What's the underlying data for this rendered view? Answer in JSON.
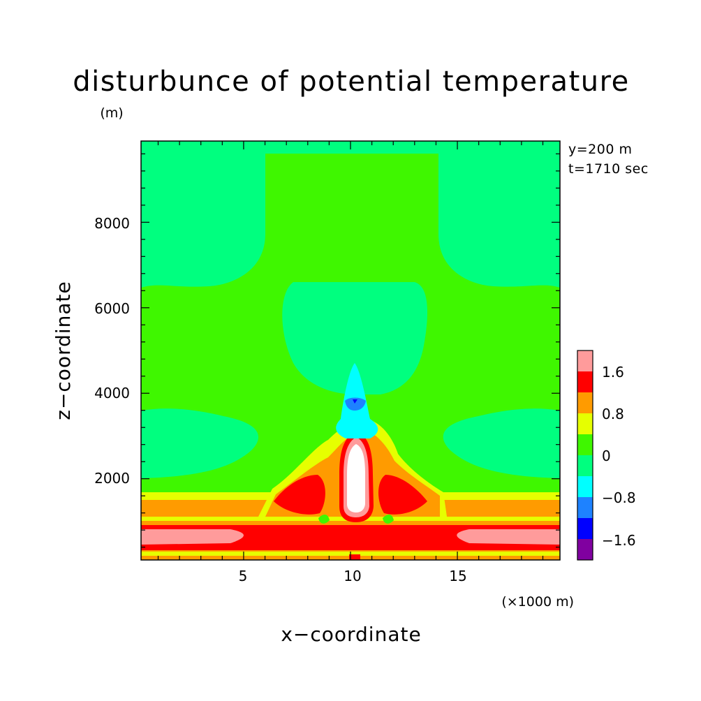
{
  "chart_data": {
    "type": "heatmap",
    "title": "disturbunce of potential temperature",
    "xlabel": "x−coordinate",
    "ylabel": "z−coordinate",
    "x_unit": "(×1000 m)",
    "y_unit": "(m)",
    "annotations": [
      "y=200 m",
      "t=1710 sec"
    ],
    "xlim": [
      0.2,
      19.8
    ],
    "ylim": [
      100,
      9900
    ],
    "x_ticks": [
      5,
      10,
      15
    ],
    "y_ticks": [
      2000,
      4000,
      6000,
      8000
    ],
    "grid": false,
    "colorbar": {
      "placement": "right",
      "levels": [
        -2.0,
        -1.6,
        -1.2,
        -0.8,
        -0.4,
        0,
        0.4,
        0.8,
        1.2,
        1.6,
        2.0
      ],
      "tick_labels": [
        "1.6",
        "0.8",
        "0",
        "−0.8",
        "−1.6"
      ],
      "colors": [
        "#8000a0",
        "#0000ff",
        "#1e82ff",
        "#00ffff",
        "#00ff7f",
        "#3ff700",
        "#e6ff00",
        "#ff9b00",
        "#ff0000",
        "#ff9b9b"
      ]
    },
    "field_features": [
      {
        "feature": "warm core (white, above 2.0)",
        "x": [
          9.6,
          10.4
        ],
        "z": [
          700,
          2800
        ]
      },
      {
        "feature": "cold anomaly (blue)",
        "x": [
          9.8,
          10.2
        ],
        "z": [
          3600,
          4000
        ]
      },
      {
        "feature": "negative plume (cyan)",
        "x": [
          9.4,
          11.0
        ],
        "z": [
          3000,
          4700
        ]
      },
      {
        "feature": "warm bands near surface",
        "x": [
          0.2,
          19.8
        ],
        "z": [
          100,
          1600
        ]
      }
    ]
  }
}
